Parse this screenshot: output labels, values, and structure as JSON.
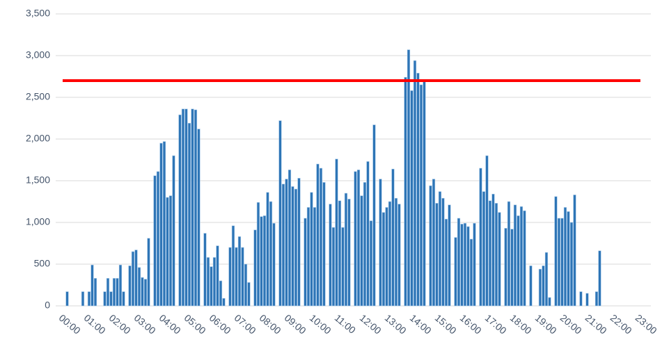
{
  "chart_data": {
    "type": "bar",
    "categories": [
      "00:00",
      null,
      null,
      null,
      null,
      null,
      null,
      null,
      "01:00",
      null,
      null,
      null,
      null,
      null,
      null,
      null,
      "02:00",
      null,
      null,
      null,
      null,
      null,
      null,
      null,
      "03:00",
      null,
      null,
      null,
      null,
      null,
      null,
      null,
      "04:00",
      null,
      null,
      null,
      null,
      null,
      null,
      null,
      "05:00",
      null,
      null,
      null,
      null,
      null,
      null,
      null,
      "06:00",
      null,
      null,
      null,
      null,
      null,
      null,
      null,
      "07:00",
      null,
      null,
      null,
      null,
      null,
      null,
      null,
      "08:00",
      null,
      null,
      null,
      null,
      null,
      null,
      null,
      "09:00",
      null,
      null,
      null,
      null,
      null,
      null,
      null,
      "10:00",
      null,
      null,
      null,
      null,
      null,
      null,
      null,
      "11:00",
      null,
      null,
      null,
      null,
      null,
      null,
      null,
      "12:00",
      null,
      null,
      null,
      null,
      null,
      null,
      null,
      "13:00",
      null,
      null,
      null,
      null,
      null,
      null,
      null,
      "14:00",
      null,
      null,
      null,
      null,
      null,
      null,
      null,
      "15:00",
      null,
      null,
      null,
      null,
      null,
      null,
      null,
      "16:00",
      null,
      null,
      null,
      null,
      null,
      null,
      null,
      "17:00",
      null,
      null,
      null,
      null,
      null,
      null,
      null,
      "18:00",
      null,
      null,
      null,
      null,
      null,
      null,
      null,
      "19:00",
      null,
      null,
      null,
      null,
      null,
      null,
      null,
      "20:00",
      null,
      null,
      null,
      null,
      null,
      null,
      null,
      "21:00",
      null,
      null,
      null,
      null,
      null,
      null,
      null,
      "22:00",
      null,
      null,
      null,
      null,
      null,
      null,
      null,
      "23:00"
    ],
    "values": [
      0,
      170,
      0,
      0,
      0,
      0,
      170,
      0,
      170,
      490,
      330,
      0,
      0,
      170,
      330,
      170,
      330,
      330,
      490,
      170,
      0,
      480,
      650,
      670,
      460,
      340,
      320,
      810,
      0,
      1560,
      1610,
      1950,
      1970,
      1300,
      1320,
      1800,
      0,
      2290,
      2360,
      2360,
      2190,
      2360,
      2350,
      2120,
      0,
      870,
      580,
      470,
      580,
      720,
      300,
      90,
      0,
      700,
      960,
      700,
      830,
      700,
      500,
      280,
      0,
      910,
      1240,
      1070,
      1080,
      1360,
      1250,
      990,
      0,
      2220,
      1460,
      1520,
      1630,
      1430,
      1400,
      1530,
      0,
      1050,
      1180,
      1360,
      1180,
      1700,
      1650,
      1480,
      0,
      1220,
      940,
      1760,
      1260,
      940,
      1350,
      1280,
      0,
      1610,
      1630,
      1320,
      1480,
      1730,
      1020,
      2170,
      0,
      1520,
      1120,
      1180,
      1250,
      1640,
      1290,
      1220,
      0,
      2740,
      3070,
      2580,
      2940,
      2790,
      2650,
      2700,
      0,
      1440,
      1520,
      1230,
      1370,
      1290,
      1040,
      1210,
      0,
      820,
      1050,
      980,
      990,
      950,
      800,
      990,
      0,
      1650,
      1370,
      1800,
      1260,
      1340,
      1230,
      1120,
      0,
      930,
      1250,
      920,
      1210,
      1080,
      1190,
      1140,
      0,
      480,
      0,
      0,
      440,
      480,
      640,
      100,
      0,
      1310,
      1050,
      1050,
      1180,
      1130,
      1000,
      1330,
      0,
      170,
      0,
      150,
      0,
      0,
      170,
      660,
      0,
      0,
      0,
      0,
      0,
      0,
      0,
      0,
      0,
      0,
      0,
      0,
      0
    ],
    "color": "#2e75b6",
    "threshold": 2700,
    "threshold_color": "#ff0000",
    "ylim": [
      0,
      3500
    ],
    "yticks": [
      0,
      500,
      {
        "value": 1000,
        "label": "1,000"
      },
      {
        "value": 1500,
        "label": "1,500"
      },
      {
        "value": 2000,
        "label": "2,000"
      },
      {
        "value": 2500,
        "label": "2,500"
      },
      {
        "value": 3000,
        "label": "3,000"
      },
      {
        "value": 3500,
        "label": "3,500"
      }
    ],
    "grid": true
  }
}
